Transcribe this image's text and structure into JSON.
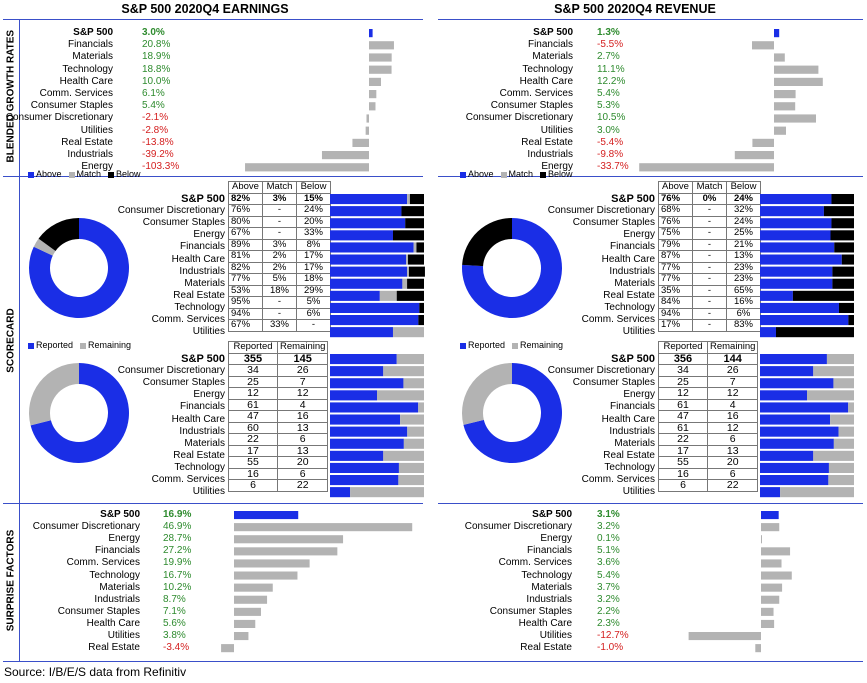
{
  "titles": {
    "earnings": "S&P 500 2020Q4 EARNINGS",
    "revenue": "S&P 500 2020Q4 REVENUE"
  },
  "section_labels": {
    "growth": "BLENDED GROWTH RATES",
    "scorecard": "SCORECARD",
    "surprise": "SURPRISE FACTORS"
  },
  "source": "Source: I/B/E/S data from Refinitiv",
  "colors": {
    "blue": "#1a2ee6",
    "gray": "#b3b3b3",
    "black": "#000000",
    "positive": "#2e8b2e",
    "negative": "#d42020",
    "rule": "#3a4fc9"
  },
  "legend": {
    "above": "Above",
    "match": "Match",
    "below": "Below",
    "reported": "Reported",
    "remaining": "Remaining"
  },
  "table_headers": {
    "above": "Above",
    "match": "Match",
    "below": "Below",
    "reported": "Reported",
    "remaining": "Remaining"
  },
  "chart_data": [
    {
      "type": "bar",
      "title": "S&P 500 2020Q4 EARNINGS",
      "ylabel": "BLENDED GROWTH RATES",
      "categories": [
        "S&P 500",
        "Financials",
        "Materials",
        "Technology",
        "Health Care",
        "Comm. Services",
        "Consumer Staples",
        "Consumer Discretionary",
        "Utilities",
        "Real Estate",
        "Industrials",
        "Energy"
      ],
      "values": [
        3.0,
        20.8,
        18.9,
        18.8,
        10.0,
        6.1,
        5.4,
        -2.1,
        -2.8,
        -13.8,
        -39.2,
        -103.3
      ],
      "labels": [
        "3.0%",
        "20.8%",
        "18.9%",
        "18.8%",
        "10.0%",
        "6.1%",
        "5.4%",
        "-2.1%",
        "-2.8%",
        "-13.8%",
        "-39.2%",
        "-103.3%"
      ]
    },
    {
      "type": "bar",
      "title": "S&P 500 2020Q4 REVENUE",
      "ylabel": "BLENDED GROWTH RATES",
      "categories": [
        "S&P 500",
        "Financials",
        "Materials",
        "Technology",
        "Health Care",
        "Comm. Services",
        "Consumer Staples",
        "Consumer Discretionary",
        "Utilities",
        "Real Estate",
        "Industrials",
        "Energy"
      ],
      "values": [
        1.3,
        -5.5,
        2.7,
        11.1,
        12.2,
        5.4,
        5.3,
        10.5,
        3.0,
        -5.4,
        -9.8,
        -33.7
      ],
      "labels": [
        "1.3%",
        "-5.5%",
        "2.7%",
        "11.1%",
        "12.2%",
        "5.4%",
        "5.3%",
        "10.5%",
        "3.0%",
        "-5.4%",
        "-9.8%",
        "-33.7%"
      ]
    },
    {
      "type": "table",
      "title": "SCORECARD",
      "legend": [
        "Above",
        "Match",
        "Below"
      ],
      "categories": [
        "S&P 500",
        "Consumer Discretionary",
        "Consumer Staples",
        "Energy",
        "Financials",
        "Health Care",
        "Industrials",
        "Materials",
        "Real Estate",
        "Technology",
        "Comm. Services",
        "Utilities"
      ],
      "above": [
        "82%",
        "76%",
        "80%",
        "67%",
        "89%",
        "81%",
        "82%",
        "77%",
        "53%",
        "95%",
        "94%",
        "67%"
      ],
      "match": [
        "3%",
        "-",
        "-",
        "-",
        "3%",
        "2%",
        "2%",
        "5%",
        "18%",
        "-",
        "-",
        "33%"
      ],
      "below": [
        "15%",
        "24%",
        "20%",
        "33%",
        "8%",
        "17%",
        "17%",
        "18%",
        "29%",
        "5%",
        "6%",
        "-"
      ],
      "above_v": [
        82,
        76,
        80,
        67,
        89,
        81,
        82,
        77,
        53,
        95,
        94,
        67
      ],
      "match_v": [
        3,
        0,
        0,
        0,
        3,
        2,
        2,
        5,
        18,
        0,
        0,
        33
      ],
      "below_v": [
        15,
        24,
        20,
        33,
        8,
        17,
        17,
        18,
        29,
        5,
        6,
        0
      ],
      "pie": {
        "above": 82,
        "match": 3,
        "below": 15
      }
    },
    {
      "type": "table",
      "title": "SCORECARD",
      "legend": [
        "Above",
        "Match",
        "Below"
      ],
      "categories": [
        "S&P 500",
        "Consumer Discretionary",
        "Consumer Staples",
        "Energy",
        "Financials",
        "Health Care",
        "Industrials",
        "Materials",
        "Real Estate",
        "Technology",
        "Comm. Services",
        "Utilities"
      ],
      "above": [
        "76%",
        "68%",
        "76%",
        "75%",
        "79%",
        "87%",
        "77%",
        "77%",
        "35%",
        "84%",
        "94%",
        "17%"
      ],
      "match": [
        "0%",
        "-",
        "-",
        "-",
        "-",
        "-",
        "-",
        "-",
        "-",
        "-",
        "-",
        "-"
      ],
      "below": [
        "24%",
        "32%",
        "24%",
        "25%",
        "21%",
        "13%",
        "23%",
        "23%",
        "65%",
        "16%",
        "6%",
        "83%"
      ],
      "above_v": [
        76,
        68,
        76,
        75,
        79,
        87,
        77,
        77,
        35,
        84,
        94,
        17
      ],
      "match_v": [
        0,
        0,
        0,
        0,
        0,
        0,
        0,
        0,
        0,
        0,
        0,
        0
      ],
      "below_v": [
        24,
        32,
        24,
        25,
        21,
        13,
        23,
        23,
        65,
        16,
        6,
        83
      ],
      "pie": {
        "above": 76,
        "match": 0,
        "below": 24
      }
    },
    {
      "type": "table",
      "title": "SCORECARD",
      "legend": [
        "Reported",
        "Remaining"
      ],
      "categories": [
        "S&P 500",
        "Consumer Discretionary",
        "Consumer Staples",
        "Energy",
        "Financials",
        "Health Care",
        "Industrials",
        "Materials",
        "Real Estate",
        "Technology",
        "Comm. Services",
        "Utilities"
      ],
      "reported": [
        355,
        34,
        25,
        12,
        61,
        47,
        60,
        22,
        17,
        55,
        16,
        6
      ],
      "remaining": [
        145,
        26,
        7,
        12,
        4,
        16,
        13,
        6,
        13,
        20,
        6,
        22
      ],
      "pie": {
        "reported": 355,
        "remaining": 145
      }
    },
    {
      "type": "table",
      "title": "SCORECARD",
      "legend": [
        "Reported",
        "Remaining"
      ],
      "categories": [
        "S&P 500",
        "Consumer Discretionary",
        "Consumer Staples",
        "Energy",
        "Financials",
        "Health Care",
        "Industrials",
        "Materials",
        "Real Estate",
        "Technology",
        "Comm. Services",
        "Utilities"
      ],
      "reported": [
        356,
        34,
        25,
        12,
        61,
        47,
        61,
        22,
        17,
        55,
        16,
        6
      ],
      "remaining": [
        144,
        26,
        7,
        12,
        4,
        16,
        12,
        6,
        13,
        20,
        6,
        22
      ],
      "pie": {
        "reported": 356,
        "remaining": 144
      }
    },
    {
      "type": "bar",
      "title": "S&P 500 2020Q4 EARNINGS",
      "ylabel": "SURPRISE FACTORS",
      "categories": [
        "S&P 500",
        "Consumer Discretionary",
        "Energy",
        "Financials",
        "Comm. Services",
        "Technology",
        "Materials",
        "Industrials",
        "Consumer Staples",
        "Health Care",
        "Utilities",
        "Real Estate"
      ],
      "values": [
        16.9,
        46.9,
        28.7,
        27.2,
        19.9,
        16.7,
        10.2,
        8.7,
        7.1,
        5.6,
        3.8,
        -3.4
      ],
      "labels": [
        "16.9%",
        "46.9%",
        "28.7%",
        "27.2%",
        "19.9%",
        "16.7%",
        "10.2%",
        "8.7%",
        "7.1%",
        "5.6%",
        "3.8%",
        "-3.4%"
      ]
    },
    {
      "type": "bar",
      "title": "S&P 500 2020Q4 REVENUE",
      "ylabel": "SURPRISE FACTORS",
      "categories": [
        "S&P 500",
        "Consumer Discretionary",
        "Energy",
        "Financials",
        "Comm. Services",
        "Technology",
        "Materials",
        "Industrials",
        "Consumer Staples",
        "Health Care",
        "Utilities",
        "Real Estate"
      ],
      "values": [
        3.1,
        3.2,
        0.1,
        5.1,
        3.6,
        5.4,
        3.7,
        3.2,
        2.2,
        2.3,
        -12.7,
        -1.0
      ],
      "labels": [
        "3.1%",
        "3.2%",
        "0.1%",
        "5.1%",
        "3.6%",
        "5.4%",
        "3.7%",
        "3.2%",
        "2.2%",
        "2.3%",
        "-12.7%",
        "-1.0%"
      ]
    }
  ]
}
